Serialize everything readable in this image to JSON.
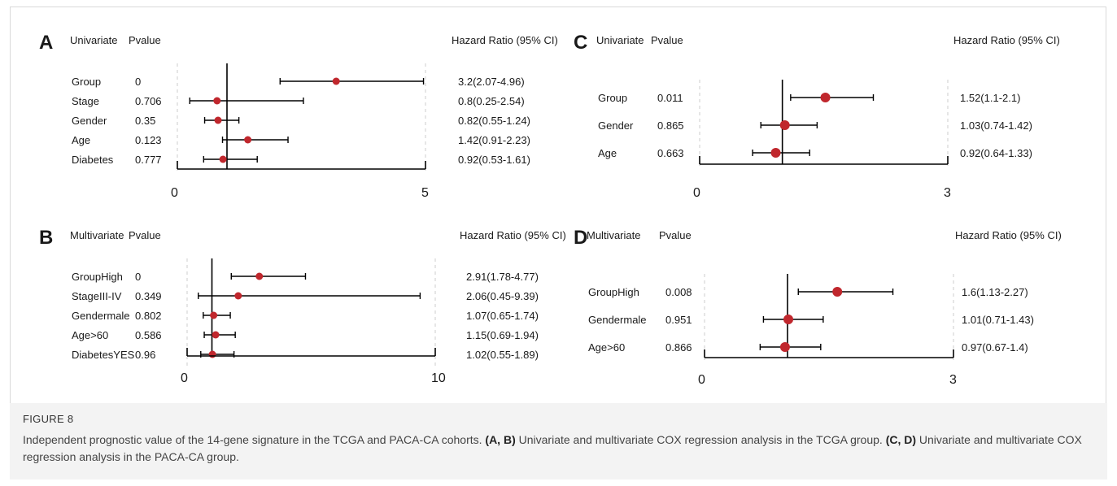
{
  "figure": {
    "label": "FIGURE 8",
    "caption_lead": "Independent prognostic value of the 14-gene signature in the TCGA and PACA-CA cohorts. ",
    "caption_ref1": "(A, B)",
    "caption_mid1": " Univariate and multivariate COX regression analysis in the TCGA group. ",
    "caption_ref2": "(C, D)",
    "caption_end": " Univariate and multivariate COX regression analysis in the PACA-CA group."
  },
  "colors": {
    "point": "#c0272d",
    "line": "#000000",
    "grid": "#cccccc"
  },
  "chart_data": [
    {
      "panel": "A",
      "type": "forest",
      "header_left": "Univariate",
      "header_pval": "Pvalue",
      "header_right": "Hazard Ratio (95% CI)",
      "xlim": [
        0,
        5
      ],
      "xticks": [
        "0",
        "5"
      ],
      "reference_line": 1,
      "rows": [
        {
          "label": "Group",
          "pvalue": "0",
          "hr": 3.2,
          "low": 2.07,
          "high": 4.96,
          "text": "3.2(2.07-4.96)"
        },
        {
          "label": "Stage",
          "pvalue": "0.706",
          "hr": 0.8,
          "low": 0.25,
          "high": 2.54,
          "text": "0.8(0.25-2.54)"
        },
        {
          "label": "Gender",
          "pvalue": "0.35",
          "hr": 0.82,
          "low": 0.55,
          "high": 1.24,
          "text": "0.82(0.55-1.24)"
        },
        {
          "label": "Age",
          "pvalue": "0.123",
          "hr": 1.42,
          "low": 0.91,
          "high": 2.23,
          "text": "1.42(0.91-2.23)"
        },
        {
          "label": "Diabetes",
          "pvalue": "0.777",
          "hr": 0.92,
          "low": 0.53,
          "high": 1.61,
          "text": "0.92(0.53-1.61)"
        }
      ]
    },
    {
      "panel": "B",
      "type": "forest",
      "header_left": "Multivariate",
      "header_pval": "Pvalue",
      "header_right": "Hazard Ratio (95% CI)",
      "xlim": [
        0,
        10
      ],
      "xticks": [
        "0",
        "10"
      ],
      "reference_line": 1,
      "rows": [
        {
          "label": "GroupHigh",
          "pvalue": "0",
          "hr": 2.91,
          "low": 1.78,
          "high": 4.77,
          "text": "2.91(1.78-4.77)"
        },
        {
          "label": "StageIII-IV",
          "pvalue": "0.349",
          "hr": 2.06,
          "low": 0.45,
          "high": 9.39,
          "text": "2.06(0.45-9.39)"
        },
        {
          "label": "Gendermale",
          "pvalue": "0.802",
          "hr": 1.07,
          "low": 0.65,
          "high": 1.74,
          "text": "1.07(0.65-1.74)"
        },
        {
          "label": "Age>60",
          "pvalue": "0.586",
          "hr": 1.15,
          "low": 0.69,
          "high": 1.94,
          "text": "1.15(0.69-1.94)"
        },
        {
          "label": "DiabetesYES",
          "pvalue": "0.96",
          "hr": 1.02,
          "low": 0.55,
          "high": 1.89,
          "text": "1.02(0.55-1.89)"
        }
      ]
    },
    {
      "panel": "C",
      "type": "forest",
      "header_left": "Univariate",
      "header_pval": "Pvalue",
      "header_right": "Hazard Ratio (95% CI)",
      "xlim": [
        0,
        3
      ],
      "xticks": [
        "0",
        "3"
      ],
      "reference_line": 1,
      "rows": [
        {
          "label": "Group",
          "pvalue": "0.011",
          "hr": 1.52,
          "low": 1.1,
          "high": 2.1,
          "text": "1.52(1.1-2.1)"
        },
        {
          "label": "Gender",
          "pvalue": "0.865",
          "hr": 1.03,
          "low": 0.74,
          "high": 1.42,
          "text": "1.03(0.74-1.42)"
        },
        {
          "label": "Age",
          "pvalue": "0.663",
          "hr": 0.92,
          "low": 0.64,
          "high": 1.33,
          "text": "0.92(0.64-1.33)"
        }
      ]
    },
    {
      "panel": "D",
      "type": "forest",
      "header_left": "Multivariate",
      "header_pval": "Pvalue",
      "header_right": "Hazard Ratio (95% CI)",
      "xlim": [
        0,
        3
      ],
      "xticks": [
        "0",
        "3"
      ],
      "reference_line": 1,
      "rows": [
        {
          "label": "GroupHigh",
          "pvalue": "0.008",
          "hr": 1.6,
          "low": 1.13,
          "high": 2.27,
          "text": "1.6(1.13-2.27)"
        },
        {
          "label": "Gendermale",
          "pvalue": "0.951",
          "hr": 1.01,
          "low": 0.71,
          "high": 1.43,
          "text": "1.01(0.71-1.43)"
        },
        {
          "label": "Age>60",
          "pvalue": "0.866",
          "hr": 0.97,
          "low": 0.67,
          "high": 1.4,
          "text": "0.97(0.67-1.4)"
        }
      ]
    }
  ]
}
